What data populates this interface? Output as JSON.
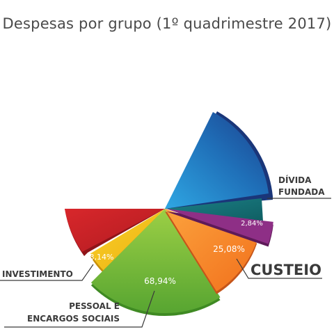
{
  "chart_data": {
    "type": "pie",
    "title": "Despesas por grupo (1º quadrimestre 2017)",
    "slices": [
      {
        "key": "investimento",
        "label": "INVESTIMENTO",
        "value": 3.14,
        "value_label": "3,14%",
        "color": "#f2c21a"
      },
      {
        "key": "pessoal",
        "label": "PESSOAL E ENCARGOS SOCIAIS",
        "value": 68.94,
        "value_label": "68,94%",
        "color": "#7cbd3a"
      },
      {
        "key": "custeio",
        "label": "CUSTEIO",
        "value": 25.08,
        "value_label": "25,08%",
        "color": "#f47f22"
      },
      {
        "key": "divida",
        "label": "DÍVIDA FUNDADA",
        "value": 2.84,
        "value_label": "2,84%",
        "color": "#8e2f86"
      }
    ],
    "labels": {
      "investimento": [
        "INVESTIMENTO"
      ],
      "pessoal": [
        "PESSOAL E",
        "ENCARGOS SOCIAIS"
      ],
      "custeio": [
        "CUSTEIO"
      ],
      "divida": [
        "DÍVIDA",
        "FUNDADA"
      ]
    }
  }
}
